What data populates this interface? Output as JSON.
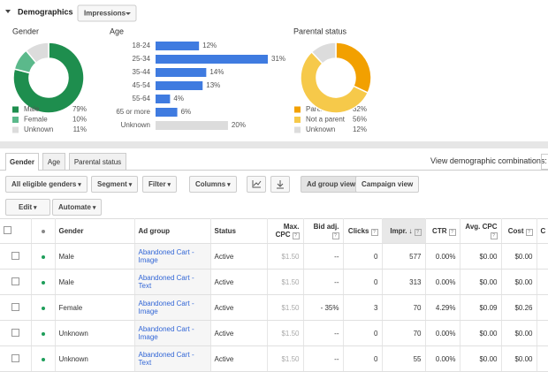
{
  "header": {
    "title": "Demographics",
    "metric": "Impressions"
  },
  "gender": {
    "type": "pie",
    "title": "Gender",
    "categories": [
      "Male",
      "Female",
      "Unknown"
    ],
    "values": [
      79,
      10,
      11
    ],
    "value_labels": [
      "79%",
      "10%",
      "11%"
    ],
    "colors": [
      "#1e8e4e",
      "#5bb98b",
      "#dcdcdc"
    ]
  },
  "age": {
    "type": "bar",
    "title": "Age",
    "categories": [
      "18-24",
      "25-34",
      "35-44",
      "45-54",
      "55-64",
      "65 or more",
      "Unknown"
    ],
    "values": [
      12,
      31,
      14,
      13,
      4,
      6,
      20
    ],
    "value_labels": [
      "12%",
      "31%",
      "14%",
      "13%",
      "4%",
      "6%",
      "20%"
    ],
    "colors": [
      "#3f7be0",
      "#3f7be0",
      "#3f7be0",
      "#3f7be0",
      "#3f7be0",
      "#3f7be0",
      "#dcdcdc"
    ]
  },
  "parental": {
    "type": "pie",
    "title": "Parental status",
    "categories": [
      "Parent",
      "Not a parent",
      "Unknown"
    ],
    "values": [
      32,
      56,
      12
    ],
    "value_labels": [
      "32%",
      "56%",
      "12%"
    ],
    "colors": [
      "#f2a000",
      "#f6c94a",
      "#dcdcdc"
    ]
  },
  "tabs": [
    "Gender",
    "Age",
    "Parental status"
  ],
  "combinations_label": "View demographic combinations:",
  "toolbar": {
    "filters": [
      "All eligible genders",
      "Segment",
      "Filter",
      "Columns"
    ],
    "views": [
      "Ad group view",
      "Campaign view"
    ],
    "actions": [
      "Edit",
      "Automate"
    ]
  },
  "table": {
    "columns": [
      "Gender",
      "Ad group",
      "Status",
      "Max. CPC",
      "Bid adj.",
      "Clicks",
      "Impr.",
      "CTR",
      "Avg. CPC",
      "Cost",
      "C"
    ],
    "rows": [
      [
        "Male",
        "Abandoned Cart - Image",
        "Active",
        "$1.50",
        "--",
        "0",
        "577",
        "0.00%",
        "$0.00",
        "$0.00"
      ],
      [
        "Male",
        "Abandoned Cart - Text",
        "Active",
        "$1.50",
        "--",
        "0",
        "313",
        "0.00%",
        "$0.00",
        "$0.00"
      ],
      [
        "Female",
        "Abandoned Cart - Image",
        "Active",
        "$1.50",
        "- 35%",
        "3",
        "70",
        "4.29%",
        "$0.09",
        "$0.26"
      ],
      [
        "Unknown",
        "Abandoned Cart - Image",
        "Active",
        "$1.50",
        "--",
        "0",
        "70",
        "0.00%",
        "$0.00",
        "$0.00"
      ],
      [
        "Unknown",
        "Abandoned Cart - Text",
        "Active",
        "$1.50",
        "--",
        "0",
        "55",
        "0.00%",
        "$0.00",
        "$0.00"
      ]
    ]
  }
}
